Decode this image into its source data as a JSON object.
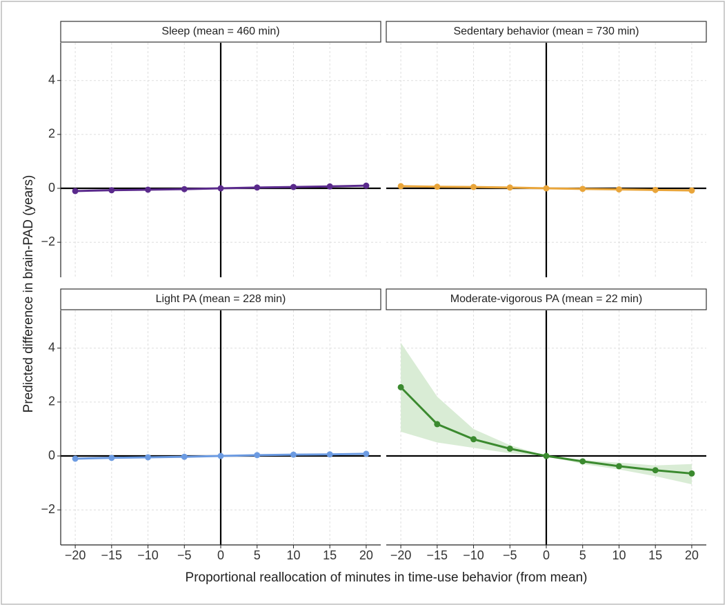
{
  "chart_data": [
    {
      "type": "line",
      "title": "Sleep (mean = 460 min)",
      "x": [
        -20,
        -15,
        -10,
        -5,
        0,
        5,
        10,
        15,
        20
      ],
      "series": [
        {
          "color": "#5a2a8c",
          "values": [
            -0.1,
            -0.07,
            -0.05,
            -0.03,
            0,
            0.03,
            0.05,
            0.07,
            0.1
          ]
        }
      ]
    },
    {
      "type": "line",
      "title": "Sedentary behavior (mean = 730 min)",
      "x": [
        -20,
        -15,
        -10,
        -5,
        0,
        5,
        10,
        15,
        20
      ],
      "series": [
        {
          "color": "#e9a53a",
          "values": [
            0.08,
            0.06,
            0.05,
            0.03,
            0,
            -0.02,
            -0.04,
            -0.06,
            -0.08
          ]
        }
      ]
    },
    {
      "type": "line",
      "title": "Light PA (mean = 228 min)",
      "x": [
        -20,
        -15,
        -10,
        -5,
        0,
        5,
        10,
        15,
        20
      ],
      "series": [
        {
          "color": "#6c9be2",
          "values": [
            -0.1,
            -0.07,
            -0.05,
            -0.03,
            0,
            0.03,
            0.05,
            0.06,
            0.08
          ]
        }
      ]
    },
    {
      "type": "line",
      "title": "Moderate-vigorous PA (mean = 22 min)",
      "x": [
        -20,
        -15,
        -10,
        -5,
        0,
        5,
        10,
        15,
        20
      ],
      "series": [
        {
          "color": "#3b8a2f",
          "band_color": "#d9ecd5",
          "values": [
            2.55,
            1.18,
            0.62,
            0.27,
            0,
            -0.2,
            -0.38,
            -0.53,
            -0.65
          ],
          "upper": [
            4.2,
            2.2,
            1.0,
            0.4,
            0,
            -0.15,
            -0.25,
            -0.35,
            -0.3
          ],
          "lower": [
            0.9,
            0.5,
            0.3,
            0.1,
            0,
            -0.3,
            -0.5,
            -0.75,
            -1.05
          ]
        }
      ]
    }
  ],
  "xlabel": "Proportional reallocation of minutes in time-use behavior (from mean)",
  "ylabel": "Predicted difference in brain-PAD (years)",
  "xlim": [
    -22,
    22
  ],
  "ylim": [
    -3.3,
    5.4
  ],
  "xticks": [
    {
      "value": -20,
      "label": "−20"
    },
    {
      "value": -15,
      "label": "−15"
    },
    {
      "value": -10,
      "label": "−10"
    },
    {
      "value": -5,
      "label": "−5"
    },
    0,
    5,
    10,
    15,
    20
  ],
  "yticks": [
    {
      "value": -2,
      "label": "−2"
    },
    0,
    2,
    4
  ],
  "hline": 0,
  "vline": 0,
  "grid": true
}
